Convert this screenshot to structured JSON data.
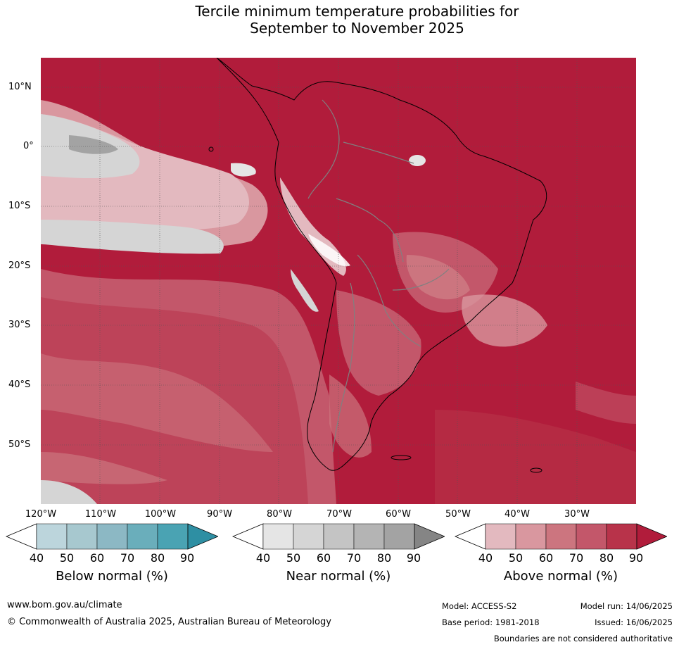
{
  "title": {
    "line1": "Tercile minimum temperature probabilities for",
    "line2": "September to November 2025"
  },
  "axes": {
    "lat_labels": [
      "10°N",
      "0°",
      "10°S",
      "20°S",
      "30°S",
      "40°S",
      "50°S"
    ],
    "lon_labels": [
      "120°W",
      "110°W",
      "100°W",
      "90°W",
      "80°W",
      "70°W",
      "60°W",
      "50°W",
      "40°W",
      "30°W"
    ]
  },
  "legend": {
    "ticks": [
      "40",
      "50",
      "60",
      "70",
      "80",
      "90"
    ],
    "below": {
      "label": "Below normal (%)",
      "colors": [
        "#ffffff",
        "#bcd5dc",
        "#a7c8cf",
        "#8cb8c4",
        "#6aaebb",
        "#4aa3b3",
        "#2e8fa3"
      ]
    },
    "near": {
      "label": "Near normal (%)",
      "colors": [
        "#ffffff",
        "#e5e5e5",
        "#d5d5d5",
        "#c4c4c4",
        "#b4b4b4",
        "#a3a3a3",
        "#858585"
      ]
    },
    "above": {
      "label": "Above normal (%)",
      "colors": [
        "#ffffff",
        "#e3b9bf",
        "#d9979f",
        "#cc757f",
        "#c3576a",
        "#b8334a",
        "#b11c3b"
      ]
    }
  },
  "footer": {
    "website": "www.bom.gov.au/climate",
    "copyright": "© Commonwealth of Australia 2025, Australian Bureau of Meteorology",
    "model": "Model: ACCESS-S2",
    "model_run": "Model run: 14/06/2025",
    "base_period": "Base period: 1981-2018",
    "issued": "Issued: 16/06/2025",
    "disclaimer": "Boundaries are not considered authoritative"
  }
}
